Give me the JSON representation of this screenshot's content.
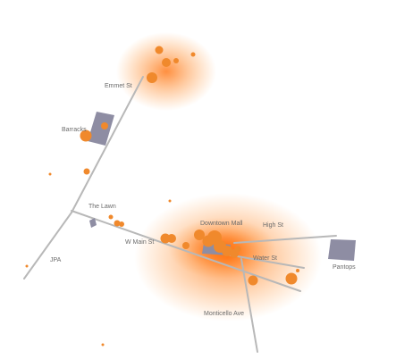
{
  "map": {
    "colors": {
      "background": "#ffffff",
      "road": "#b8b8b8",
      "building": "#8e8da3",
      "point": "#f0892c",
      "heat": "#ff6a00"
    },
    "labels": {
      "emmet_st": "Emmet St",
      "barracks": "Barracks",
      "the_lawn": "The Lawn",
      "jpa": "JPA",
      "w_main_st": "W Main St",
      "downtown_mall": "Downtown Mall",
      "high_st": "High St",
      "water_st": "Water St",
      "pantops": "Pantops",
      "monticello_ave": "Monticello Ave"
    }
  }
}
